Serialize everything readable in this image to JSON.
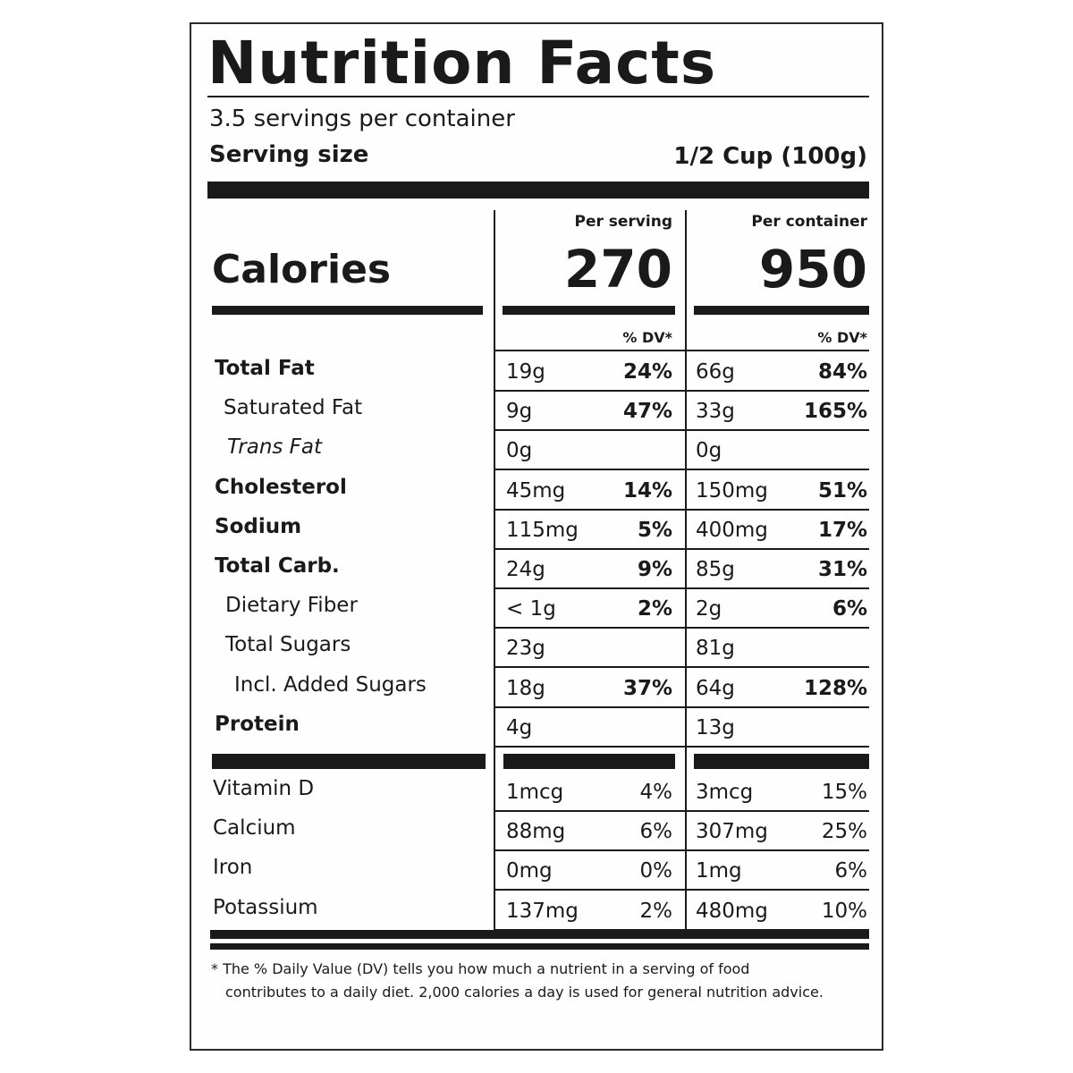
{
  "title": "Nutrition Facts",
  "servings_per_container": "3.5 servings per container",
  "serving_size": {
    "label": "Serving size",
    "value": "1/2 Cup (100g)"
  },
  "columns": [
    "Per serving",
    "Per container"
  ],
  "calories": {
    "label": "Calories",
    "per_serving": "270",
    "per_container": "950"
  },
  "dv_header": [
    "% DV*",
    "% DV*"
  ],
  "nutrients": [
    {
      "name": "Total Fat",
      "per_serving": {
        "amount": "19g",
        "dv": "24%"
      },
      "per_container": {
        "amount": "66g",
        "dv": "84%"
      }
    },
    {
      "name": "Saturated Fat",
      "per_serving": {
        "amount": "9g",
        "dv": "47%"
      },
      "per_container": {
        "amount": "33g",
        "dv": "165%"
      }
    },
    {
      "name": "Trans Fat",
      "per_serving": {
        "amount": "0g"
      },
      "per_container": {
        "amount": "0g"
      }
    },
    {
      "name": "Cholesterol",
      "per_serving": {
        "amount": "45mg",
        "dv": "14%"
      },
      "per_container": {
        "amount": "150mg",
        "dv": "51%"
      }
    },
    {
      "name": "Sodium",
      "per_serving": {
        "amount": "115mg",
        "dv": "5%"
      },
      "per_container": {
        "amount": "400mg",
        "dv": "17%"
      }
    },
    {
      "name": "Total Carb.",
      "per_serving": {
        "amount": "24g",
        "dv": "9%"
      },
      "per_container": {
        "amount": "85g",
        "dv": "31%"
      }
    },
    {
      "name": "Dietary Fiber",
      "per_serving": {
        "amount": "< 1g",
        "dv": "2%"
      },
      "per_container": {
        "amount": "2g",
        "dv": "6%"
      }
    },
    {
      "name": "Total Sugars",
      "per_serving": {
        "amount": "23g"
      },
      "per_container": {
        "amount": "81g"
      }
    },
    {
      "name": "Incl. Added Sugars",
      "per_serving": {
        "amount": "18g",
        "dv": "37%"
      },
      "per_container": {
        "amount": "64g",
        "dv": "128%"
      }
    },
    {
      "name": "Protein",
      "per_serving": {
        "amount": "4g"
      },
      "per_container": {
        "amount": "13g"
      }
    }
  ],
  "vitamins": [
    {
      "name": "Vitamin D",
      "per_serving": {
        "amount": "1mcg",
        "dv": "4%"
      },
      "per_container": {
        "amount": "3mcg",
        "dv": "15%"
      }
    },
    {
      "name": "Calcium",
      "per_serving": {
        "amount": "88mg",
        "dv": "6%"
      },
      "per_container": {
        "amount": "307mg",
        "dv": "25%"
      }
    },
    {
      "name": "Iron",
      "per_serving": {
        "amount": "0mg",
        "dv": "0%"
      },
      "per_container": {
        "amount": "1mg",
        "dv": "6%"
      }
    },
    {
      "name": "Potassium",
      "per_serving": {
        "amount": "137mg",
        "dv": "2%"
      },
      "per_container": {
        "amount": "480mg",
        "dv": "10%"
      }
    }
  ],
  "footnote": [
    "* The % Daily Value (DV) tells you how much a nutrient in a serving of food",
    "contributes to a daily diet. 2,000 calories a day is used for general nutrition advice."
  ]
}
